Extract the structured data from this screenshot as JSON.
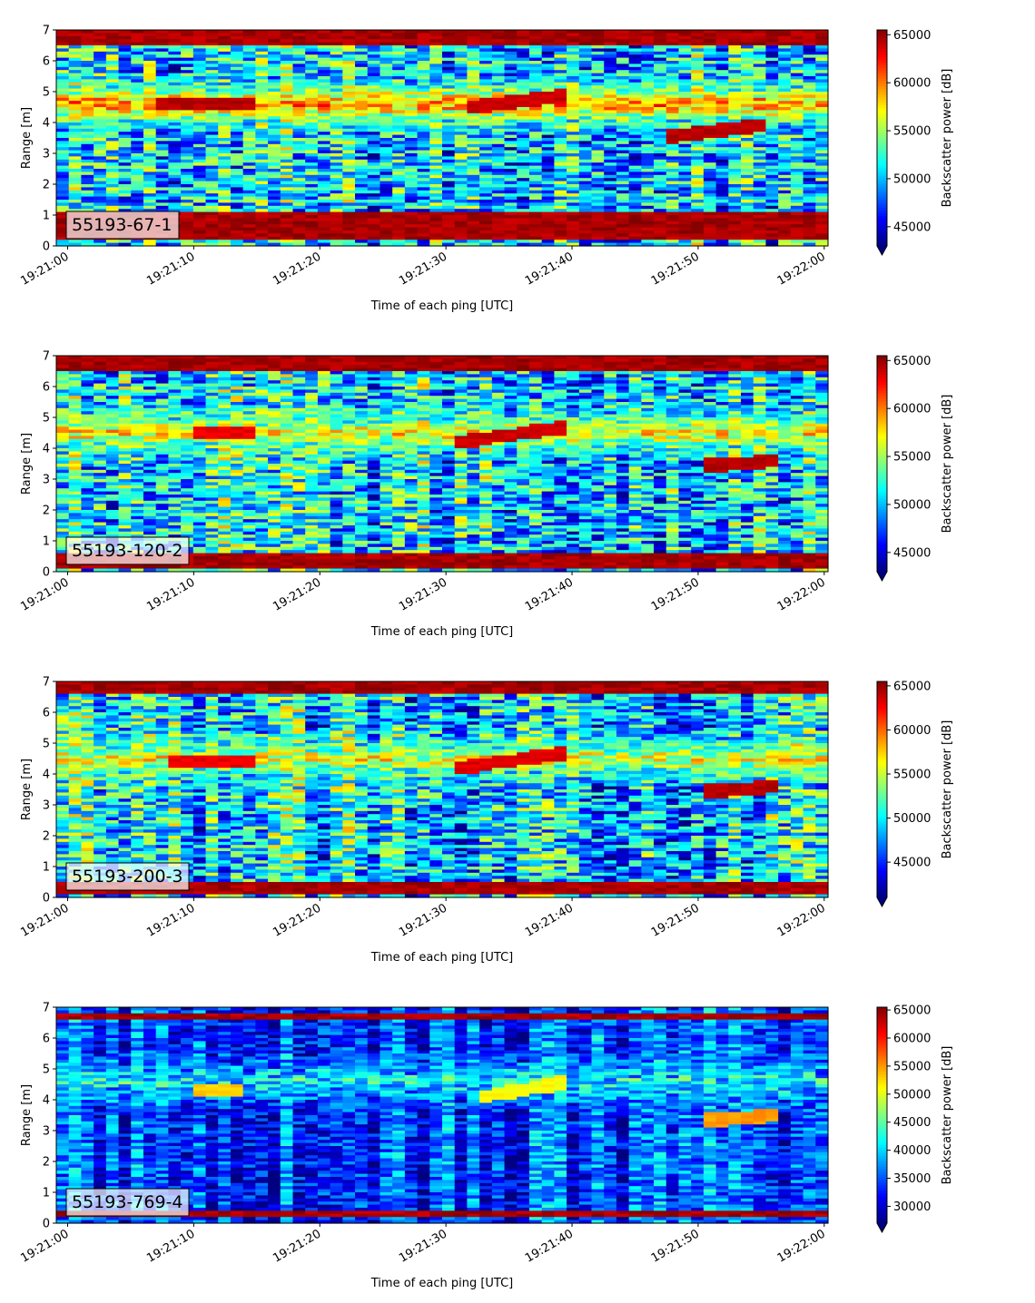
{
  "chart_data": [
    {
      "type": "heatmap",
      "annotation": "55193-67-1",
      "xlabel": "Time of each ping [UTC]",
      "ylabel": "Range [m]",
      "ylim": [
        0,
        7
      ],
      "yticks": [
        0,
        1,
        2,
        3,
        4,
        5,
        6,
        7
      ],
      "xlim": [
        "19:21:00",
        "19:22:00"
      ],
      "xticks": [
        "19:21:00",
        "19:21:10",
        "19:21:20",
        "19:21:30",
        "19:21:40",
        "19:21:50",
        "19:22:00"
      ],
      "colorbar": {
        "label": "Backscatter power [dB]",
        "colormap": "jet",
        "range": [
          43000,
          65500
        ],
        "extend": "min",
        "ticks": [
          45000,
          50000,
          55000,
          60000,
          65000
        ]
      },
      "features": [
        {
          "type": "band",
          "y_min": 0.2,
          "y_max": 1.1,
          "level": 1.0
        },
        {
          "type": "band",
          "y_min": 6.5,
          "y_max": 7.0,
          "level": 1.0
        },
        {
          "type": "layer",
          "t_start": 0,
          "t_end": 60,
          "y": 4.6,
          "level": 0.75
        },
        {
          "type": "streak",
          "t_start": 7,
          "t_end": 15,
          "y_start": 4.6,
          "y_end": 4.6,
          "level": 0.97
        },
        {
          "type": "streak",
          "t_start": 32,
          "t_end": 40,
          "y_start": 4.5,
          "y_end": 4.9,
          "level": 0.95
        },
        {
          "type": "streak",
          "t_start": 47,
          "t_end": 55,
          "y_start": 3.5,
          "y_end": 3.9,
          "level": 0.97
        }
      ]
    },
    {
      "type": "heatmap",
      "annotation": "55193-120-2",
      "xlabel": "Time of each ping [UTC]",
      "ylabel": "Range [m]",
      "ylim": [
        0,
        7
      ],
      "yticks": [
        0,
        1,
        2,
        3,
        4,
        5,
        6,
        7
      ],
      "xlim": [
        "19:21:00",
        "19:22:00"
      ],
      "xticks": [
        "19:21:00",
        "19:21:10",
        "19:21:20",
        "19:21:30",
        "19:21:40",
        "19:21:50",
        "19:22:00"
      ],
      "colorbar": {
        "label": "Backscatter power [dB]",
        "colormap": "jet",
        "range": [
          43000,
          65500
        ],
        "extend": "min",
        "ticks": [
          45000,
          50000,
          55000,
          60000,
          65000
        ]
      },
      "features": [
        {
          "type": "band",
          "y_min": 0.1,
          "y_max": 0.6,
          "level": 1.0
        },
        {
          "type": "band",
          "y_min": 6.5,
          "y_max": 7.0,
          "level": 1.0
        },
        {
          "type": "layer",
          "t_start": 0,
          "t_end": 60,
          "y": 4.5,
          "level": 0.65
        },
        {
          "type": "streak",
          "t_start": 10,
          "t_end": 15,
          "y_start": 4.5,
          "y_end": 4.5,
          "level": 0.92
        },
        {
          "type": "streak",
          "t_start": 31,
          "t_end": 40,
          "y_start": 4.2,
          "y_end": 4.7,
          "level": 0.95
        },
        {
          "type": "streak",
          "t_start": 50,
          "t_end": 56,
          "y_start": 3.4,
          "y_end": 3.6,
          "level": 0.97
        }
      ]
    },
    {
      "type": "heatmap",
      "annotation": "55193-200-3",
      "xlabel": "Time of each ping [UTC]",
      "ylabel": "Range [m]",
      "ylim": [
        0,
        7
      ],
      "yticks": [
        0,
        1,
        2,
        3,
        4,
        5,
        6,
        7
      ],
      "xlim": [
        "19:21:00",
        "19:22:00"
      ],
      "xticks": [
        "19:21:00",
        "19:21:10",
        "19:21:20",
        "19:21:30",
        "19:21:40",
        "19:21:50",
        "19:22:00"
      ],
      "colorbar": {
        "label": "Backscatter power [dB]",
        "colormap": "jet",
        "range": [
          41000,
          65500
        ],
        "extend": "min",
        "ticks": [
          45000,
          50000,
          55000,
          60000,
          65000
        ]
      },
      "features": [
        {
          "type": "band",
          "y_min": 0.1,
          "y_max": 0.5,
          "level": 1.0
        },
        {
          "type": "band",
          "y_min": 6.6,
          "y_max": 7.0,
          "level": 1.0
        },
        {
          "type": "layer",
          "t_start": 0,
          "t_end": 60,
          "y": 4.5,
          "level": 0.62
        },
        {
          "type": "streak",
          "t_start": 8,
          "t_end": 15,
          "y_start": 4.4,
          "y_end": 4.4,
          "level": 0.92
        },
        {
          "type": "streak",
          "t_start": 31,
          "t_end": 40,
          "y_start": 4.2,
          "y_end": 4.7,
          "level": 0.93
        },
        {
          "type": "streak",
          "t_start": 50,
          "t_end": 56,
          "y_start": 3.4,
          "y_end": 3.6,
          "level": 0.97
        }
      ]
    },
    {
      "type": "heatmap",
      "annotation": "55193-769-4",
      "xlabel": "Time of each ping [UTC]",
      "ylabel": "Range [m]",
      "ylim": [
        0,
        7
      ],
      "yticks": [
        0,
        1,
        2,
        3,
        4,
        5,
        6,
        7
      ],
      "xlim": [
        "19:21:00",
        "19:22:00"
      ],
      "xticks": [
        "19:21:00",
        "19:21:10",
        "19:21:20",
        "19:21:30",
        "19:21:40",
        "19:21:50",
        "19:22:00"
      ],
      "colorbar": {
        "label": "Backscatter power [dB]",
        "colormap": "jet",
        "range": [
          27000,
          65500
        ],
        "extend": "min",
        "ticks": [
          30000,
          35000,
          40000,
          45000,
          50000,
          55000,
          60000,
          65000
        ]
      },
      "features": [
        {
          "type": "band",
          "y_min": 0.2,
          "y_max": 0.4,
          "level": 1.0
        },
        {
          "type": "band",
          "y_min": 6.6,
          "y_max": 6.8,
          "level": 1.0
        },
        {
          "type": "layer",
          "t_start": 0,
          "t_end": 60,
          "y": 4.6,
          "level": 0.38
        },
        {
          "type": "streak",
          "t_start": 10,
          "t_end": 14,
          "y_start": 4.3,
          "y_end": 4.3,
          "level": 0.7
        },
        {
          "type": "streak",
          "t_start": 33,
          "t_end": 40,
          "y_start": 4.1,
          "y_end": 4.6,
          "level": 0.65
        },
        {
          "type": "streak",
          "t_start": 50,
          "t_end": 56,
          "y_start": 3.3,
          "y_end": 3.5,
          "level": 0.75
        }
      ]
    }
  ]
}
